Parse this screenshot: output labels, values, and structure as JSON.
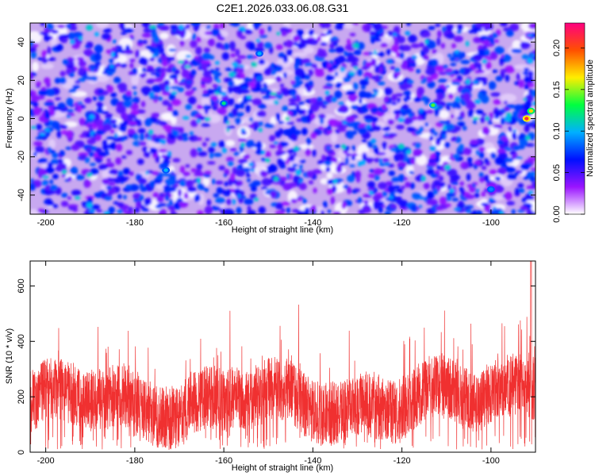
{
  "title": "C2E1.2026.033.06.08.G31",
  "chart_data": [
    {
      "type": "heatmap",
      "name": "spectrogram",
      "xlabel": "Height of straight line (km)",
      "ylabel": "Frequency (Hz)",
      "xlim": [
        -203.5,
        -90
      ],
      "ylim": [
        -50,
        50
      ],
      "xticks": [
        -200,
        -180,
        -160,
        -140,
        -120,
        -100
      ],
      "yticks": [
        -40,
        -20,
        0,
        20,
        40
      ],
      "colorbar": {
        "label": "Normalized spectral amplitude",
        "range": [
          0,
          0.23
        ],
        "ticks": [
          "0.00",
          "0.05",
          "0.10",
          "0.15",
          "0.20"
        ],
        "colors": [
          "#ffffff",
          "#9a14ff",
          "#0010ff",
          "#00b0ff",
          "#00ff40",
          "#ffee00",
          "#ff5000",
          "#ff0080"
        ]
      },
      "hotspots": [
        {
          "x": -92,
          "y": 0,
          "value": 0.21
        },
        {
          "x": -91,
          "y": 4,
          "value": 0.17
        },
        {
          "x": -113,
          "y": 7,
          "value": 0.14
        },
        {
          "x": -160,
          "y": 8,
          "value": 0.12
        },
        {
          "x": -152,
          "y": 34,
          "value": 0.1
        },
        {
          "x": -173,
          "y": -27,
          "value": 0.1
        },
        {
          "x": -100,
          "y": -37,
          "value": 0.09
        }
      ]
    },
    {
      "type": "line",
      "name": "snr",
      "xlabel": "Height of straight line (km)",
      "ylabel": "SNR (10 * v/v)",
      "xlim": [
        -203.5,
        -90
      ],
      "ylim": [
        0,
        690
      ],
      "xticks": [
        -200,
        -180,
        -160,
        -140,
        -120,
        -100
      ],
      "yticks": [
        0,
        200,
        400,
        600
      ],
      "series": [
        {
          "name": "SNR",
          "color": "#f03030",
          "baseline": 180,
          "peak": 690,
          "peak_x": -91
        }
      ]
    }
  ]
}
